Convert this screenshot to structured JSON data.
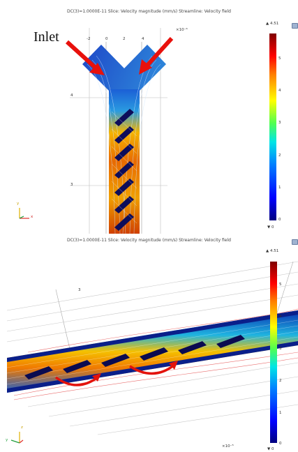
{
  "panel_top": {
    "title": "DC(3)=1.0000E-11   Slice: Velocity magnitude (mm/s)  Streamline: Velocity field",
    "annotation": "Inlet",
    "x_ticks": [
      "-2",
      "0",
      "2",
      "4"
    ],
    "x_exponent": "×10⁻⁶",
    "y_ticks": [
      "4",
      "3"
    ],
    "colorbar": {
      "max_label": "▲ 4.51",
      "min_label": "▼ 0",
      "ticks": [
        "5",
        "4",
        "3",
        "2",
        "1",
        "0"
      ]
    },
    "axis": {
      "y": "y",
      "x": "x"
    }
  },
  "panel_bottom": {
    "title": "DC(3)=1.0000E-11   Slice: Velocity magnitude (mm/s)  Streamline: Velocity field",
    "axis_label_3": "3",
    "x_exponent": "×10⁻⁵",
    "colorbar": {
      "max_label": "▲ 4.51",
      "min_label": "▼ 0",
      "ticks": [
        "5",
        "4",
        "3",
        "2",
        "1",
        "0"
      ]
    },
    "axis": {
      "z": "z",
      "y": "y"
    }
  }
}
